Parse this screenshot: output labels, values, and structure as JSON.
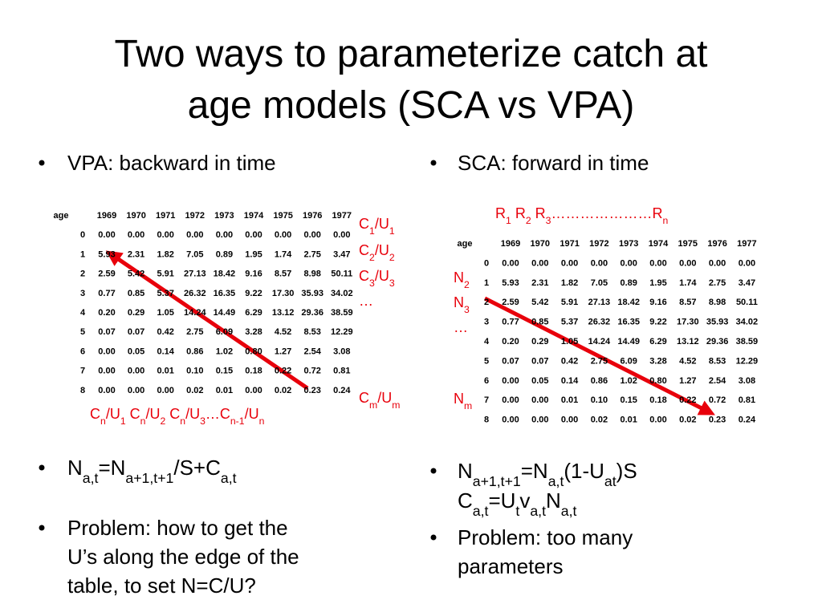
{
  "title": [
    "Two ways to parameterize catch at",
    "age models (SCA vs VPA)"
  ],
  "table": {
    "header": [
      "age",
      "1969",
      "1970",
      "1971",
      "1972",
      "1973",
      "1974",
      "1975",
      "1976",
      "1977"
    ],
    "rows": [
      [
        "0",
        "0.00",
        "0.00",
        "0.00",
        "0.00",
        "0.00",
        "0.00",
        "0.00",
        "0.00",
        "0.00"
      ],
      [
        "1",
        "5.93",
        "2.31",
        "1.82",
        "7.05",
        "0.89",
        "1.95",
        "1.74",
        "2.75",
        "3.47"
      ],
      [
        "2",
        "2.59",
        "5.42",
        "5.91",
        "27.13",
        "18.42",
        "9.16",
        "8.57",
        "8.98",
        "50.11"
      ],
      [
        "3",
        "0.77",
        "0.85",
        "5.37",
        "26.32",
        "16.35",
        "9.22",
        "17.30",
        "35.93",
        "34.02"
      ],
      [
        "4",
        "0.20",
        "0.29",
        "1.05",
        "14.24",
        "14.49",
        "6.29",
        "13.12",
        "29.36",
        "38.59"
      ],
      [
        "5",
        "0.07",
        "0.07",
        "0.42",
        "2.75",
        "6.09",
        "3.28",
        "4.52",
        "8.53",
        "12.29"
      ],
      [
        "6",
        "0.00",
        "0.05",
        "0.14",
        "0.86",
        "1.02",
        "0.80",
        "1.27",
        "2.54",
        "3.08"
      ],
      [
        "7",
        "0.00",
        "0.00",
        "0.01",
        "0.10",
        "0.15",
        "0.18",
        "0.22",
        "0.72",
        "0.81"
      ],
      [
        "8",
        "0.00",
        "0.00",
        "0.00",
        "0.02",
        "0.01",
        "0.00",
        "0.02",
        "0.23",
        "0.24"
      ]
    ]
  },
  "left": {
    "heading": "VPA: backward in time",
    "side_labels": [
      [
        {
          "text": "C"
        },
        {
          "text": "1",
          "sub": true
        },
        {
          "text": "/U"
        },
        {
          "text": "1",
          "sub": true
        }
      ],
      [
        {
          "text": "C"
        },
        {
          "text": "2",
          "sub": true
        },
        {
          "text": "/U"
        },
        {
          "text": "2",
          "sub": true
        }
      ],
      [
        {
          "text": "C"
        },
        {
          "text": "3",
          "sub": true
        },
        {
          "text": "/U"
        },
        {
          "text": "3",
          "sub": true
        }
      ],
      [
        {
          "text": "…"
        }
      ],
      [
        {
          "text": "C"
        },
        {
          "text": "m",
          "sub": true
        },
        {
          "text": "/U"
        },
        {
          "text": "m",
          "sub": true
        }
      ]
    ],
    "bottom_label": [
      {
        "text": "C"
      },
      {
        "text": "n",
        "sub": true
      },
      {
        "text": "/U"
      },
      {
        "text": "1",
        "sub": true
      },
      {
        "text": " C"
      },
      {
        "text": "n",
        "sub": true
      },
      {
        "text": "/U"
      },
      {
        "text": "2",
        "sub": true
      },
      {
        "text": " C"
      },
      {
        "text": "n",
        "sub": true
      },
      {
        "text": "/U"
      },
      {
        "text": "3",
        "sub": true
      },
      {
        "text": "…C"
      },
      {
        "text": "n-1",
        "sub": true
      },
      {
        "text": "/U"
      },
      {
        "text": "n",
        "sub": true
      }
    ],
    "equation": [
      {
        "text": "N"
      },
      {
        "text": "a,t",
        "sub": true
      },
      {
        "text": "=N"
      },
      {
        "text": "a+1,t+1",
        "sub": true
      },
      {
        "text": "/S+C"
      },
      {
        "text": "a,t",
        "sub": true
      }
    ],
    "problem": [
      "Problem: how to get the",
      "U’s along the edge of the",
      "table, to set N=C/U?"
    ]
  },
  "right": {
    "heading": "SCA: forward in time",
    "top_label": [
      {
        "text": "R"
      },
      {
        "text": "1",
        "sub": true
      },
      {
        "text": " R"
      },
      {
        "text": "2",
        "sub": true
      },
      {
        "text": " R"
      },
      {
        "text": "3",
        "sub": true
      },
      {
        "text": "…………………R"
      },
      {
        "text": "n",
        "sub": true
      }
    ],
    "side_labels": [
      [
        {
          "text": "N"
        },
        {
          "text": "2",
          "sub": true
        }
      ],
      [
        {
          "text": "N"
        },
        {
          "text": "3",
          "sub": true
        }
      ],
      [
        {
          "text": "…"
        }
      ],
      [
        {
          "text": "N"
        },
        {
          "text": "m",
          "sub": true
        }
      ]
    ],
    "equations": [
      [
        {
          "text": "N"
        },
        {
          "text": "a+1,t+1",
          "sub": true
        },
        {
          "text": "=N"
        },
        {
          "text": "a,t",
          "sub": true
        },
        {
          "text": "(1-U"
        },
        {
          "text": "at",
          "sub": true
        },
        {
          "text": ")S"
        }
      ],
      [
        {
          "text": "C"
        },
        {
          "text": "a,t",
          "sub": true
        },
        {
          "text": "=U"
        },
        {
          "text": "t",
          "sub": true
        },
        {
          "text": "v"
        },
        {
          "text": "a,t",
          "sub": true
        },
        {
          "text": "N"
        },
        {
          "text": "a,t",
          "sub": true
        }
      ]
    ],
    "problem": [
      "Problem: too many",
      "parameters"
    ]
  }
}
